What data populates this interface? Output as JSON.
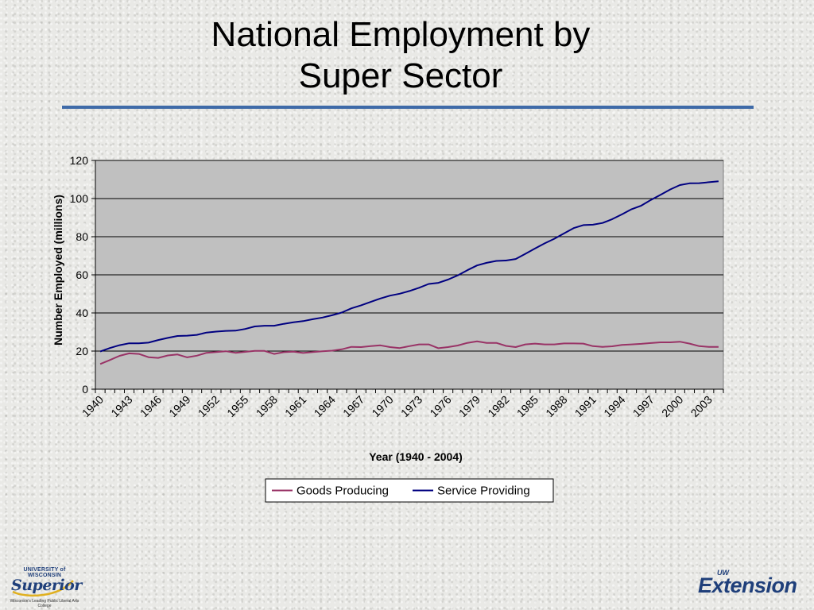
{
  "slide": {
    "title_line1": "National Employment by",
    "title_line2": "Super Sector"
  },
  "logos": {
    "left_top": "UNIVERSITY of WISCONSIN",
    "left_brand": "Superior",
    "left_tagline": "Wisconsin's Leading Public Liberal Arts College",
    "right_small": "UW",
    "right_brand": "Extension"
  },
  "colors": {
    "title_rule": "#3e6aa8",
    "plot_bg": "#c0c0c0",
    "goods": "#993366",
    "service": "#000080"
  },
  "chart_data": {
    "type": "line",
    "title": "",
    "xlabel": "Year (1940 - 2004)",
    "ylabel": "Number Employed (millions)",
    "ylim": [
      0,
      120
    ],
    "yticks": [
      0,
      20,
      40,
      60,
      80,
      100,
      120
    ],
    "x_start": 1940,
    "x_end": 2004,
    "x_tick_labels": [
      "1940",
      "1943",
      "1946",
      "1949",
      "1952",
      "1955",
      "1958",
      "1961",
      "1964",
      "1967",
      "1970",
      "1973",
      "1976",
      "1979",
      "1982",
      "1985",
      "1988",
      "1991",
      "1994",
      "1997",
      "2000",
      "2003"
    ],
    "grid": "horizontal",
    "legend_position": "bottom",
    "series": [
      {
        "name": "Goods Producing",
        "color": "#993366",
        "values": [
          13.2,
          15.3,
          17.5,
          18.8,
          18.5,
          16.8,
          16.4,
          17.7,
          18.2,
          16.7,
          17.6,
          19.1,
          19.5,
          19.9,
          19.1,
          19.6,
          20.1,
          20.1,
          18.5,
          19.4,
          19.7,
          19.0,
          19.5,
          19.9,
          20.2,
          20.9,
          22.2,
          22.1,
          22.6,
          23.0,
          22.1,
          21.6,
          22.6,
          23.5,
          23.5,
          21.5,
          22.1,
          22.9,
          24.3,
          25.1,
          24.3,
          24.3,
          22.7,
          22.1,
          23.5,
          23.9,
          23.5,
          23.5,
          24.0,
          24.0,
          23.9,
          22.6,
          22.2,
          22.5,
          23.2,
          23.5,
          23.8,
          24.2,
          24.6,
          24.6,
          24.9,
          23.9,
          22.6,
          22.2,
          22.2
        ]
      },
      {
        "name": "Service Providing",
        "color": "#000080",
        "values": [
          19.8,
          21.6,
          23.1,
          24.1,
          24.1,
          24.4,
          25.8,
          26.9,
          27.9,
          28.1,
          28.5,
          29.7,
          30.2,
          30.6,
          30.7,
          31.6,
          32.9,
          33.3,
          33.3,
          34.3,
          35.1,
          35.7,
          36.7,
          37.6,
          38.8,
          40.2,
          42.4,
          44.0,
          45.8,
          47.6,
          49.1,
          50.1,
          51.5,
          53.2,
          55.2,
          55.8,
          57.5,
          59.7,
          62.4,
          64.9,
          66.3,
          67.3,
          67.5,
          68.3,
          71.0,
          73.8,
          76.5,
          78.9,
          81.7,
          84.5,
          86.1,
          86.3,
          87.2,
          89.2,
          91.7,
          94.4,
          96.3,
          99.3,
          102.0,
          104.8,
          107.1,
          108.0,
          108.1,
          108.6,
          109.1
        ]
      }
    ]
  }
}
